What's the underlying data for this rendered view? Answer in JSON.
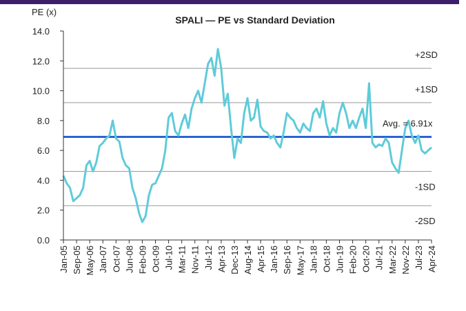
{
  "chart_data": {
    "type": "line",
    "title": "SPALI — PE vs Standard Deviation",
    "y_label": "PE (x)",
    "categories": [
      "Jan-05",
      null,
      null,
      null,
      "Sep-05",
      null,
      null,
      null,
      "May-06",
      null,
      null,
      null,
      "Jan-07",
      null,
      null,
      null,
      "Oct-07",
      null,
      null,
      null,
      "Jun-08",
      null,
      null,
      null,
      "Feb-09",
      null,
      null,
      null,
      "Oct-09",
      null,
      null,
      null,
      "Jul-10",
      null,
      null,
      null,
      "Mar-11",
      null,
      null,
      null,
      "Nov-11",
      null,
      null,
      null,
      "Jul-12",
      null,
      null,
      null,
      "Apr-13",
      null,
      null,
      null,
      "Dec-13",
      null,
      null,
      null,
      "Aug-14",
      null,
      null,
      null,
      "Apr-15",
      null,
      null,
      null,
      "Jan-16",
      null,
      null,
      null,
      "Sep-16",
      null,
      null,
      null,
      "May-17",
      null,
      null,
      null,
      "Jan-18",
      null,
      null,
      null,
      "Oct-18",
      null,
      null,
      null,
      "Jun-19",
      null,
      null,
      null,
      "Feb-20",
      null,
      null,
      null,
      "Oct-20",
      null,
      null,
      null,
      "Jul-21",
      null,
      null,
      null,
      "Mar-22",
      null,
      null,
      null,
      "Nov-22",
      null,
      null,
      null,
      "Jul-23",
      null,
      null,
      null,
      "Apr-24"
    ],
    "series": [
      {
        "name": "PE",
        "color": "#5fcbd9",
        "values": [
          4.3,
          3.8,
          3.5,
          2.6,
          2.8,
          3.0,
          3.5,
          5.0,
          5.3,
          4.6,
          5.2,
          6.3,
          6.5,
          6.8,
          7.0,
          8.0,
          6.8,
          6.6,
          5.5,
          5.0,
          4.8,
          3.5,
          2.8,
          1.8,
          1.2,
          1.6,
          3.0,
          3.7,
          3.8,
          4.3,
          4.8,
          6.0,
          8.2,
          8.5,
          7.3,
          7.0,
          7.8,
          8.4,
          7.5,
          8.8,
          9.5,
          10.0,
          9.2,
          10.5,
          11.8,
          12.2,
          11.0,
          12.8,
          11.5,
          9.0,
          9.8,
          7.5,
          5.5,
          6.8,
          6.5,
          8.5,
          9.5,
          8.0,
          8.2,
          9.4,
          7.6,
          7.3,
          7.2,
          6.8,
          7.0,
          6.5,
          6.2,
          7.2,
          8.5,
          8.2,
          8.0,
          7.5,
          7.2,
          7.8,
          7.5,
          7.3,
          8.5,
          8.8,
          8.2,
          9.3,
          7.8,
          7.0,
          7.5,
          7.2,
          8.5,
          9.2,
          8.5,
          7.5,
          8.0,
          7.5,
          8.2,
          8.8,
          7.5,
          10.5,
          6.5,
          6.2,
          6.4,
          6.3,
          6.8,
          6.5,
          5.2,
          4.8,
          4.5,
          6.0,
          7.5,
          8.0,
          7.0,
          6.5,
          7.0,
          6.0,
          5.8,
          6.0,
          6.2
        ]
      }
    ],
    "reference_lines": [
      {
        "label": "+2SD",
        "value": 11.5,
        "color": "#999999"
      },
      {
        "label": "+1SD",
        "value": 9.2,
        "color": "#999999"
      },
      {
        "label": "Avg. = 6.91x",
        "value": 6.91,
        "color": "#2a63d4"
      },
      {
        "label": "-1SD",
        "value": 4.6,
        "color": "#999999"
      },
      {
        "label": "-2SD",
        "value": 2.3,
        "color": "#999999"
      }
    ],
    "ylim": [
      0,
      14
    ],
    "yticks": [
      {
        "value": 0,
        "label": "0.0"
      },
      {
        "value": 2,
        "label": "2.0"
      },
      {
        "value": 4,
        "label": "4.0"
      },
      {
        "value": 6,
        "label": "6.0"
      },
      {
        "value": 8,
        "label": "8.0"
      },
      {
        "value": 10,
        "label": "10.0"
      },
      {
        "value": 12,
        "label": "12.0"
      },
      {
        "value": 14,
        "label": "14.0"
      }
    ]
  }
}
